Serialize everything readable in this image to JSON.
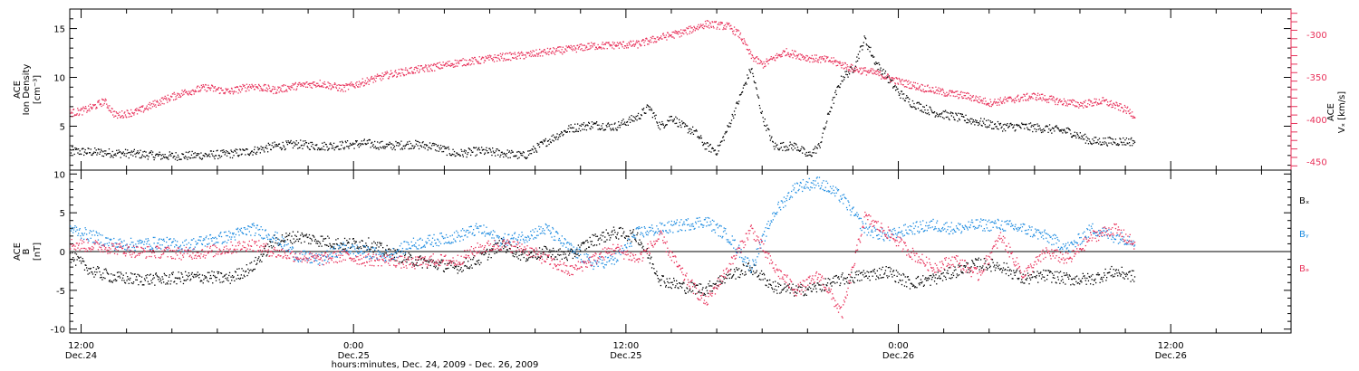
{
  "figure": {
    "time_axis": {
      "major_ticks": [
        {
          "time_h": 12,
          "time": "12:00",
          "day": "Dec.24"
        },
        {
          "time_h": 24,
          "time": "0:00",
          "day": "Dec.25"
        },
        {
          "time_h": 36,
          "time": "12:00",
          "day": "Dec.25"
        },
        {
          "time_h": 48,
          "time": "0:00",
          "day": "Dec.26"
        },
        {
          "time_h": 60,
          "time": "12:00",
          "day": "Dec.26"
        }
      ],
      "xlabel": "hours:minutes, Dec. 24, 2009 - Dec. 26, 2009",
      "xlim_h": [
        11.5,
        65.3
      ]
    }
  },
  "chart_data": [
    {
      "type": "scatter",
      "panel": "top",
      "x_unit": "hours since Dec. 24 00:00",
      "ylabel_lines": [
        "ACE",
        "Ion Density",
        "[cm⁻³]"
      ],
      "ylim": [
        0.5,
        17
      ],
      "yticks": [
        5,
        10,
        15
      ],
      "y2label_lines": [
        "ACE",
        "Vₓ [km/s]"
      ],
      "y2lim": [
        -460,
        -270
      ],
      "y2ticks": [
        -300,
        -350,
        -400,
        -450
      ],
      "series": [
        {
          "axis": "left",
          "color": "#000000",
          "points": [
            [
              11.5,
              2.5
            ],
            [
              12.5,
              2.4
            ],
            [
              13.5,
              2.3
            ],
            [
              14.5,
              2.2
            ],
            [
              15.5,
              2.0
            ],
            [
              16.5,
              2.0
            ],
            [
              17.5,
              2.1
            ],
            [
              18.5,
              2.2
            ],
            [
              19.5,
              2.5
            ],
            [
              20.5,
              3.0
            ],
            [
              21.5,
              3.2
            ],
            [
              22.5,
              3.0
            ],
            [
              23.5,
              3.1
            ],
            [
              24.5,
              3.3
            ],
            [
              25.5,
              3.0
            ],
            [
              26.5,
              3.2
            ],
            [
              27.5,
              3.0
            ],
            [
              28.5,
              2.2
            ],
            [
              29.5,
              2.5
            ],
            [
              30.5,
              2.3
            ],
            [
              31.5,
              2.0
            ],
            [
              32.5,
              3.5
            ],
            [
              33.5,
              4.8
            ],
            [
              34.5,
              5.2
            ],
            [
              35.5,
              5.0
            ],
            [
              36.0,
              5.5
            ],
            [
              36.5,
              6.0
            ],
            [
              37.0,
              7.0
            ],
            [
              37.5,
              5.0
            ],
            [
              38.0,
              6.0
            ],
            [
              38.5,
              5.0
            ],
            [
              39.0,
              4.5
            ],
            [
              39.5,
              3.0
            ],
            [
              40.0,
              2.5
            ],
            [
              40.5,
              5.0
            ],
            [
              41.0,
              8.0
            ],
            [
              41.5,
              11.0
            ],
            [
              42.0,
              6.0
            ],
            [
              42.5,
              3.0
            ],
            [
              43.0,
              3.0
            ],
            [
              43.5,
              3.0
            ],
            [
              44.0,
              2.0
            ],
            [
              44.5,
              3.0
            ],
            [
              45.0,
              7.0
            ],
            [
              45.5,
              10.0
            ],
            [
              46.0,
              11.0
            ],
            [
              46.5,
              14.0
            ],
            [
              47.0,
              11.5
            ],
            [
              47.5,
              10.0
            ],
            [
              48.0,
              8.5
            ],
            [
              48.5,
              7.5
            ],
            [
              49.5,
              6.5
            ],
            [
              50.5,
              6.0
            ],
            [
              51.5,
              5.5
            ],
            [
              52.5,
              5.0
            ],
            [
              53.5,
              5.0
            ],
            [
              54.5,
              4.8
            ],
            [
              55.5,
              4.5
            ],
            [
              56.5,
              3.5
            ],
            [
              57.5,
              3.5
            ],
            [
              58.4,
              3.5
            ]
          ]
        },
        {
          "axis": "right",
          "color": "#e8315a",
          "points": [
            [
              11.5,
              -392
            ],
            [
              12.0,
              -390
            ],
            [
              12.5,
              -385
            ],
            [
              13.0,
              -378
            ],
            [
              13.5,
              -395
            ],
            [
              14.5,
              -390
            ],
            [
              15.5,
              -378
            ],
            [
              16.5,
              -368
            ],
            [
              17.5,
              -362
            ],
            [
              18.5,
              -367
            ],
            [
              19.5,
              -360
            ],
            [
              20.5,
              -365
            ],
            [
              21.5,
              -360
            ],
            [
              22.5,
              -357
            ],
            [
              23.5,
              -363
            ],
            [
              24.5,
              -355
            ],
            [
              25.5,
              -347
            ],
            [
              26.5,
              -342
            ],
            [
              27.5,
              -338
            ],
            [
              28.5,
              -333
            ],
            [
              29.5,
              -330
            ],
            [
              30.5,
              -326
            ],
            [
              31.5,
              -324
            ],
            [
              32.5,
              -320
            ],
            [
              33.5,
              -317
            ],
            [
              34.5,
              -313
            ],
            [
              35.5,
              -312
            ],
            [
              36.5,
              -311
            ],
            [
              37.5,
              -303
            ],
            [
              38.5,
              -297
            ],
            [
              39.5,
              -287
            ],
            [
              40.5,
              -290
            ],
            [
              41.0,
              -300
            ],
            [
              41.5,
              -325
            ],
            [
              42.0,
              -335
            ],
            [
              43.0,
              -320
            ],
            [
              44.0,
              -327
            ],
            [
              45.0,
              -330
            ],
            [
              46.0,
              -340
            ],
            [
              47.0,
              -345
            ],
            [
              48.0,
              -355
            ],
            [
              49.0,
              -362
            ],
            [
              50.0,
              -368
            ],
            [
              51.0,
              -372
            ],
            [
              52.0,
              -380
            ],
            [
              53.0,
              -376
            ],
            [
              54.0,
              -372
            ],
            [
              55.0,
              -378
            ],
            [
              56.0,
              -382
            ],
            [
              57.0,
              -378
            ],
            [
              58.0,
              -388
            ],
            [
              58.4,
              -395
            ]
          ]
        }
      ]
    },
    {
      "type": "scatter",
      "panel": "bottom",
      "x_unit": "hours since Dec. 24 00:00",
      "ylabel_lines": [
        "ACE",
        "B",
        "[nT]"
      ],
      "ylim": [
        -10.5,
        10.5
      ],
      "yticks": [
        10,
        5,
        0,
        -5,
        -10
      ],
      "zero_line": true,
      "series": [
        {
          "name": "Bₓ",
          "color": "#000000",
          "points": [
            [
              11.5,
              -0.5
            ],
            [
              12.5,
              -2.5
            ],
            [
              13.5,
              -3.3
            ],
            [
              14.5,
              -3.5
            ],
            [
              15.5,
              -3.5
            ],
            [
              16.5,
              -3.3
            ],
            [
              17.5,
              -3.2
            ],
            [
              18.5,
              -3.4
            ],
            [
              19.5,
              -2.0
            ],
            [
              20.5,
              1.5
            ],
            [
              21.5,
              2.0
            ],
            [
              22.5,
              1.5
            ],
            [
              23.5,
              1.0
            ],
            [
              24.5,
              1.2
            ],
            [
              25.5,
              0.0
            ],
            [
              26.5,
              -1.0
            ],
            [
              27.5,
              -1.5
            ],
            [
              28.5,
              -2.0
            ],
            [
              29.5,
              -1.0
            ],
            [
              30.5,
              1.0
            ],
            [
              31.5,
              -0.5
            ],
            [
              32.5,
              0.0
            ],
            [
              33.5,
              -0.5
            ],
            [
              34.5,
              1.5
            ],
            [
              35.5,
              2.5
            ],
            [
              36.5,
              2.0
            ],
            [
              37.5,
              -3.5
            ],
            [
              38.5,
              -4.5
            ],
            [
              39.5,
              -4.8
            ],
            [
              40.5,
              -3.0
            ],
            [
              41.5,
              -2.0
            ],
            [
              42.5,
              -4.5
            ],
            [
              43.5,
              -5.0
            ],
            [
              44.5,
              -4.5
            ],
            [
              45.5,
              -3.5
            ],
            [
              46.5,
              -3.0
            ],
            [
              47.5,
              -2.5
            ],
            [
              48.5,
              -4.0
            ],
            [
              49.5,
              -3.5
            ],
            [
              50.5,
              -2.5
            ],
            [
              51.5,
              -1.5
            ],
            [
              52.5,
              -1.8
            ],
            [
              53.5,
              -3.5
            ],
            [
              54.5,
              -3.0
            ],
            [
              55.5,
              -3.5
            ],
            [
              56.5,
              -3.5
            ],
            [
              57.5,
              -2.5
            ],
            [
              58.4,
              -3.2
            ]
          ]
        },
        {
          "name": "Bᵧ",
          "color": "#1c8be0",
          "points": [
            [
              11.5,
              3.0
            ],
            [
              12.5,
              2.0
            ],
            [
              13.5,
              1.0
            ],
            [
              14.5,
              1.0
            ],
            [
              15.5,
              1.2
            ],
            [
              16.5,
              0.8
            ],
            [
              17.5,
              1.5
            ],
            [
              18.5,
              2.0
            ],
            [
              19.5,
              3.0
            ],
            [
              20.5,
              2.0
            ],
            [
              21.5,
              -0.5
            ],
            [
              22.5,
              -1.0
            ],
            [
              23.5,
              0.5
            ],
            [
              24.5,
              0.0
            ],
            [
              25.5,
              -0.5
            ],
            [
              26.5,
              1.0
            ],
            [
              27.5,
              1.5
            ],
            [
              28.5,
              2.0
            ],
            [
              29.5,
              3.0
            ],
            [
              30.5,
              1.5
            ],
            [
              31.5,
              2.0
            ],
            [
              32.5,
              3.0
            ],
            [
              33.5,
              0.5
            ],
            [
              34.5,
              -1.5
            ],
            [
              35.5,
              -1.0
            ],
            [
              36.5,
              2.5
            ],
            [
              37.5,
              3.0
            ],
            [
              38.5,
              3.5
            ],
            [
              39.5,
              4.0
            ],
            [
              40.5,
              2.0
            ],
            [
              41.5,
              -2.0
            ],
            [
              42.5,
              5.0
            ],
            [
              43.5,
              8.5
            ],
            [
              44.5,
              9.0
            ],
            [
              45.5,
              7.0
            ],
            [
              46.5,
              3.0
            ],
            [
              47.5,
              2.0
            ],
            [
              48.5,
              3.0
            ],
            [
              49.5,
              3.5
            ],
            [
              50.5,
              3.0
            ],
            [
              51.5,
              3.5
            ],
            [
              52.5,
              3.5
            ],
            [
              53.5,
              3.0
            ],
            [
              54.5,
              2.0
            ],
            [
              55.5,
              0.5
            ],
            [
              56.5,
              3.0
            ],
            [
              57.5,
              2.0
            ],
            [
              58.4,
              1.5
            ]
          ]
        },
        {
          "name": "Bₔ",
          "color": "#e8315a",
          "points": [
            [
              11.5,
              1.0
            ],
            [
              12.5,
              0.8
            ],
            [
              13.5,
              0.5
            ],
            [
              14.5,
              0.0
            ],
            [
              15.5,
              0.0
            ],
            [
              16.5,
              -0.2
            ],
            [
              17.5,
              0.0
            ],
            [
              18.5,
              0.5
            ],
            [
              19.5,
              1.0
            ],
            [
              20.5,
              0.0
            ],
            [
              21.5,
              -0.5
            ],
            [
              22.5,
              -1.0
            ],
            [
              23.5,
              -0.5
            ],
            [
              24.5,
              -1.0
            ],
            [
              25.5,
              -1.0
            ],
            [
              26.5,
              -1.5
            ],
            [
              27.5,
              -1.0
            ],
            [
              28.5,
              -1.2
            ],
            [
              29.5,
              0.5
            ],
            [
              30.5,
              1.0
            ],
            [
              31.5,
              0.5
            ],
            [
              32.5,
              -1.0
            ],
            [
              33.5,
              -2.5
            ],
            [
              34.5,
              -1.0
            ],
            [
              35.5,
              0.5
            ],
            [
              36.5,
              -1.0
            ],
            [
              37.5,
              2.0
            ],
            [
              38.5,
              -3.0
            ],
            [
              39.5,
              -6.5
            ],
            [
              40.5,
              -2.0
            ],
            [
              41.5,
              3.0
            ],
            [
              42.5,
              -2.0
            ],
            [
              43.5,
              -5.0
            ],
            [
              44.5,
              -3.0
            ],
            [
              45.5,
              -8.0
            ],
            [
              46.5,
              4.5
            ],
            [
              47.5,
              2.5
            ],
            [
              48.5,
              0.0
            ],
            [
              49.5,
              -2.0
            ],
            [
              50.5,
              -1.0
            ],
            [
              51.5,
              -3.0
            ],
            [
              52.5,
              2.0
            ],
            [
              53.5,
              -3.0
            ],
            [
              54.5,
              0.0
            ],
            [
              55.5,
              -1.0
            ],
            [
              56.5,
              2.0
            ],
            [
              57.5,
              3.0
            ],
            [
              58.4,
              1.0
            ]
          ]
        }
      ]
    }
  ]
}
